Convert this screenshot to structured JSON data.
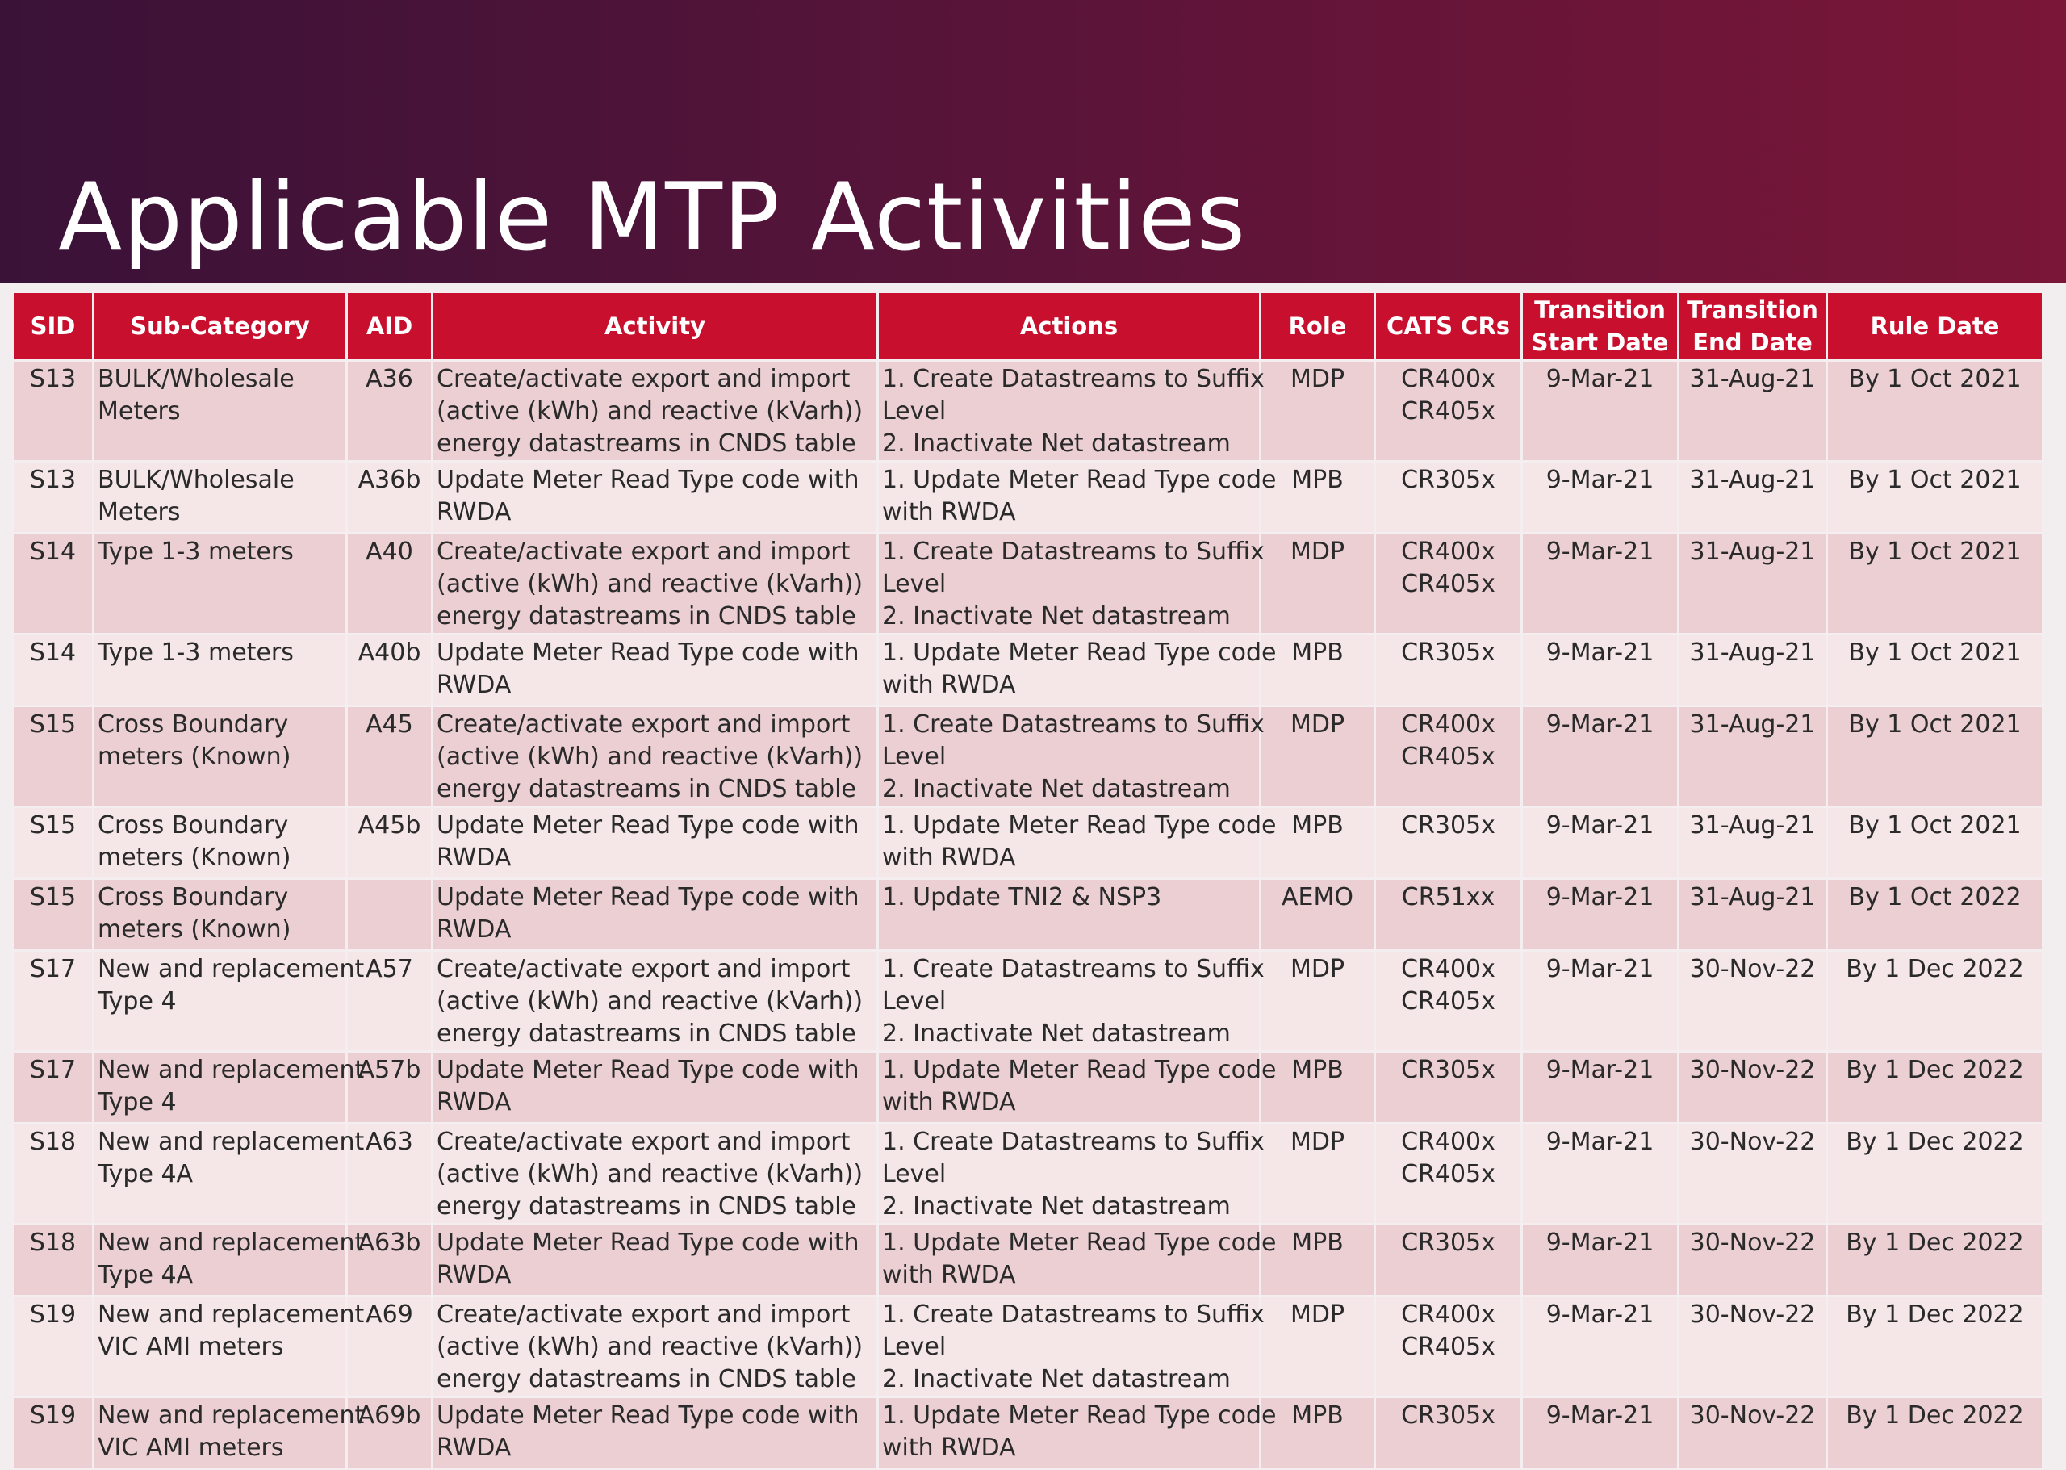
{
  "title": "Applicable MTP Activities",
  "table": {
    "headers": {
      "sid": "SID",
      "sub_category": "Sub-Category",
      "aid": "AID",
      "activity": "Activity",
      "actions": "Actions",
      "role": "Role",
      "cats_crs": "CATS CRs",
      "transition_start_1": "Transition",
      "transition_start_2": "Start Date",
      "transition_end_1": "Transition",
      "transition_end_2": "End Date",
      "rule_date": "Rule Date"
    },
    "rows": [
      {
        "sid": "S13",
        "sub": [
          "BULK/Wholesale",
          "Meters"
        ],
        "aid": "A36",
        "activity": [
          "Create/activate export and import",
          "(active (kWh) and reactive (kVarh))",
          "energy datastreams in CNDS table"
        ],
        "actions": [
          "1. Create Datastreams to Suffix",
          "Level",
          "2. Inactivate Net datastream"
        ],
        "role": "MDP",
        "crs": [
          "CR400x",
          "CR405x"
        ],
        "start": "9-Mar-21",
        "end": "31-Aug-21",
        "rule": "By 1 Oct 2021"
      },
      {
        "sid": "S13",
        "sub": [
          "BULK/Wholesale",
          "Meters"
        ],
        "aid": "A36b",
        "activity": [
          "Update Meter Read Type code with",
          "RWDA"
        ],
        "actions": [
          "1. Update Meter Read Type code",
          "with RWDA"
        ],
        "role": "MPB",
        "crs": [
          "CR305x"
        ],
        "start": "9-Mar-21",
        "end": "31-Aug-21",
        "rule": "By 1 Oct 2021"
      },
      {
        "sid": "S14",
        "sub": [
          "Type 1-3 meters"
        ],
        "aid": "A40",
        "activity": [
          "Create/activate export and import",
          "(active (kWh) and reactive (kVarh))",
          "energy datastreams in CNDS table"
        ],
        "actions": [
          "1. Create Datastreams to Suffix",
          "Level",
          "2. Inactivate Net datastream"
        ],
        "role": "MDP",
        "crs": [
          "CR400x",
          "CR405x"
        ],
        "start": "9-Mar-21",
        "end": "31-Aug-21",
        "rule": "By 1 Oct 2021"
      },
      {
        "sid": "S14",
        "sub": [
          "Type 1-3 meters"
        ],
        "aid": "A40b",
        "activity": [
          "Update Meter Read Type code with",
          "RWDA"
        ],
        "actions": [
          "1. Update Meter Read Type code",
          "with RWDA"
        ],
        "role": "MPB",
        "crs": [
          "CR305x"
        ],
        "start": "9-Mar-21",
        "end": "31-Aug-21",
        "rule": "By 1 Oct 2021"
      },
      {
        "sid": "S15",
        "sub": [
          "Cross Boundary",
          "meters (Known)"
        ],
        "aid": "A45",
        "activity": [
          "Create/activate export and import",
          "(active (kWh) and reactive (kVarh))",
          "energy datastreams in CNDS table"
        ],
        "actions": [
          "1. Create Datastreams to Suffix",
          "Level",
          "2. Inactivate Net datastream"
        ],
        "role": "MDP",
        "crs": [
          "CR400x",
          "CR405x"
        ],
        "start": "9-Mar-21",
        "end": "31-Aug-21",
        "rule": "By 1 Oct 2021"
      },
      {
        "sid": "S15",
        "sub": [
          "Cross Boundary",
          "meters (Known)"
        ],
        "aid": "A45b",
        "activity": [
          "Update Meter Read Type code with",
          "RWDA"
        ],
        "actions": [
          "1. Update Meter Read Type code",
          "with RWDA"
        ],
        "role": "MPB",
        "crs": [
          "CR305x"
        ],
        "start": "9-Mar-21",
        "end": "31-Aug-21",
        "rule": "By 1 Oct 2021"
      },
      {
        "sid": "S15",
        "sub": [
          "Cross Boundary",
          "meters (Known)"
        ],
        "aid": "",
        "activity": [
          "Update Meter Read Type code with",
          "RWDA"
        ],
        "actions": [
          "1. Update TNI2 & NSP3"
        ],
        "role": "AEMO",
        "crs": [
          "CR51xx"
        ],
        "start": "9-Mar-21",
        "end": "31-Aug-21",
        "rule": "By 1 Oct 2022"
      },
      {
        "sid": "S17",
        "sub": [
          "New and replacement",
          "Type 4"
        ],
        "aid": "A57",
        "activity": [
          "Create/activate export and import",
          "(active (kWh) and reactive (kVarh))",
          "energy datastreams in CNDS table"
        ],
        "actions": [
          "1. Create Datastreams to Suffix",
          "Level",
          "2. Inactivate Net datastream"
        ],
        "role": "MDP",
        "crs": [
          "CR400x",
          "CR405x"
        ],
        "start": "9-Mar-21",
        "end": "30-Nov-22",
        "rule": "By 1 Dec 2022"
      },
      {
        "sid": "S17",
        "sub": [
          "New and replacement",
          "Type 4"
        ],
        "aid": "A57b",
        "activity": [
          "Update Meter Read Type code with",
          "RWDA"
        ],
        "actions": [
          "1. Update Meter Read Type code",
          "with RWDA"
        ],
        "role": "MPB",
        "crs": [
          "CR305x"
        ],
        "start": "9-Mar-21",
        "end": "30-Nov-22",
        "rule": "By 1 Dec 2022"
      },
      {
        "sid": "S18",
        "sub": [
          "New and replacement",
          "Type 4A"
        ],
        "aid": "A63",
        "activity": [
          "Create/activate export and import",
          "(active (kWh) and reactive (kVarh))",
          "energy datastreams in CNDS table"
        ],
        "actions": [
          "1. Create Datastreams to Suffix",
          "Level",
          "2. Inactivate Net datastream"
        ],
        "role": "MDP",
        "crs": [
          "CR400x",
          "CR405x"
        ],
        "start": "9-Mar-21",
        "end": "30-Nov-22",
        "rule": "By 1 Dec 2022"
      },
      {
        "sid": "S18",
        "sub": [
          "New and replacement",
          "Type 4A"
        ],
        "aid": "A63b",
        "activity": [
          "Update Meter Read Type code with",
          "RWDA"
        ],
        "actions": [
          "1. Update Meter Read Type code",
          "with RWDA"
        ],
        "role": "MPB",
        "crs": [
          "CR305x"
        ],
        "start": "9-Mar-21",
        "end": "30-Nov-22",
        "rule": "By 1 Dec 2022"
      },
      {
        "sid": "S19",
        "sub": [
          "New and replacement",
          "VIC AMI meters"
        ],
        "aid": "A69",
        "activity": [
          "Create/activate export and import",
          "(active (kWh) and reactive (kVarh))",
          "energy datastreams in CNDS table"
        ],
        "actions": [
          "1. Create Datastreams to Suffix",
          "Level",
          "2. Inactivate Net datastream"
        ],
        "role": "MDP",
        "crs": [
          "CR400x",
          "CR405x"
        ],
        "start": "9-Mar-21",
        "end": "30-Nov-22",
        "rule": "By 1 Dec 2022"
      },
      {
        "sid": "S19",
        "sub": [
          "New and replacement",
          "VIC AMI meters"
        ],
        "aid": "A69b",
        "activity": [
          "Update Meter Read Type code with",
          "RWDA"
        ],
        "actions": [
          "1. Update Meter Read Type code",
          "with RWDA"
        ],
        "role": "MPB",
        "crs": [
          "CR305x"
        ],
        "start": "9-Mar-21",
        "end": "30-Nov-22",
        "rule": "By 1 Dec 2022"
      }
    ]
  }
}
